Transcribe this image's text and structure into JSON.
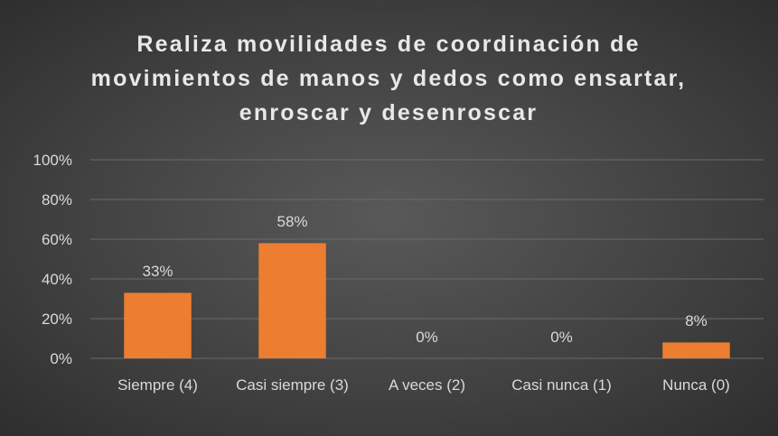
{
  "chart_data": {
    "type": "bar",
    "title": "Realiza movilidades de coordinación de movimientos de manos y dedos como ensartar, enroscar y desenroscar",
    "categories": [
      "Siempre (4)",
      "Casi siempre (3)",
      "A veces (2)",
      "Casi nunca (1)",
      "Nunca (0)"
    ],
    "values": [
      33,
      58,
      0,
      0,
      8
    ],
    "value_labels": [
      "33%",
      "58%",
      "0%",
      "0%",
      "8%"
    ],
    "color": "#ed7d31",
    "ylim": [
      0,
      100
    ],
    "yticks": [
      {
        "value": 0,
        "label": "0%"
      },
      {
        "value": 20,
        "label": "20%"
      },
      {
        "value": 40,
        "label": "40%"
      },
      {
        "value": 60,
        "label": "60%"
      },
      {
        "value": 80,
        "label": "80%"
      },
      {
        "value": 100,
        "label": "100%"
      }
    ],
    "grid": true
  }
}
